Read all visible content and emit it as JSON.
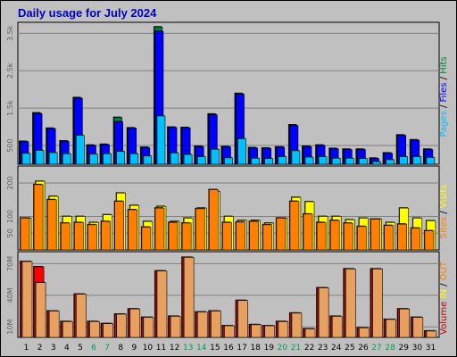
{
  "chart_data": {
    "type": "bar",
    "title": "Daily usage for July 2024",
    "colors": {
      "background": "#c0c0c0",
      "panel": "#c0c0c0",
      "hits": "#008040",
      "files": "#0000ff",
      "pages": "#00c0ff",
      "visits": "#ffff00",
      "sites": "#ff8000",
      "kbytes_in": "#ff0000",
      "kbytes_out": "#e8a060",
      "title": "#0000c0",
      "weekend_day": "#00a050"
    },
    "days": [
      "1",
      "2",
      "3",
      "4",
      "5",
      "6",
      "7",
      "8",
      "9",
      "10",
      "11",
      "12",
      "13",
      "14",
      "15",
      "16",
      "17",
      "18",
      "19",
      "20",
      "21",
      "22",
      "23",
      "24",
      "25",
      "26",
      "27",
      "28",
      "29",
      "30",
      "31"
    ],
    "weekend_days": [
      "6",
      "7",
      "13",
      "14",
      "20",
      "21",
      "27",
      "28"
    ],
    "top_panel": {
      "ylabel_parts": [
        "Pages",
        " / ",
        "Files",
        " / ",
        "Hits"
      ],
      "ticks": [
        "3.5k",
        "2.5k",
        "1.5k",
        "500"
      ],
      "tick_values": [
        3500,
        2500,
        1500,
        500
      ],
      "ylim": [
        0,
        3700
      ],
      "series": [
        {
          "name": "Hits",
          "values": [
            610,
            1370,
            960,
            620,
            1780,
            510,
            530,
            1250,
            970,
            450,
            3670,
            990,
            980,
            480,
            1340,
            470,
            1890,
            440,
            430,
            460,
            1050,
            480,
            510,
            420,
            400,
            400,
            160,
            300,
            780,
            650,
            400
          ]
        },
        {
          "name": "Files",
          "values": [
            600,
            1350,
            950,
            610,
            1760,
            500,
            520,
            1130,
            960,
            440,
            3550,
            980,
            970,
            470,
            1320,
            460,
            1870,
            430,
            420,
            450,
            1030,
            470,
            500,
            410,
            390,
            390,
            150,
            290,
            770,
            640,
            390
          ]
        },
        {
          "name": "Pages",
          "values": [
            290,
            370,
            310,
            280,
            770,
            270,
            280,
            340,
            280,
            220,
            1290,
            300,
            260,
            200,
            400,
            170,
            680,
            160,
            150,
            200,
            360,
            190,
            200,
            160,
            160,
            150,
            70,
            120,
            200,
            200,
            180
          ]
        }
      ]
    },
    "middle_panel": {
      "ylabel_parts": [
        "Sites",
        " / ",
        "Visits"
      ],
      "ticks": [
        "200",
        "100",
        "50"
      ],
      "tick_values": [
        200,
        100,
        50
      ],
      "ylim": [
        0,
        240
      ],
      "series": [
        {
          "name": "Visits",
          "values": [
            95,
            205,
            160,
            100,
            100,
            82,
            105,
            170,
            133,
            85,
            130,
            85,
            95,
            125,
            175,
            100,
            88,
            88,
            80,
            95,
            157,
            144,
            100,
            100,
            90,
            95,
            92,
            82,
            125,
            95,
            87
          ]
        },
        {
          "name": "Sites",
          "values": [
            95,
            195,
            150,
            80,
            82,
            75,
            85,
            145,
            120,
            68,
            125,
            82,
            80,
            123,
            180,
            82,
            83,
            85,
            75,
            95,
            145,
            107,
            82,
            88,
            80,
            70,
            92,
            73,
            77,
            65,
            57
          ]
        }
      ]
    },
    "bottom_panel": {
      "ylabel_parts": [
        "Volume",
        "  ",
        "IN",
        " / ",
        "OUT"
      ],
      "ticks": [
        "70M",
        "40M",
        "10M"
      ],
      "tick_values": [
        70,
        40,
        10
      ],
      "ylim": [
        0,
        78
      ],
      "series": [
        {
          "name": "IN",
          "values": [
            72,
            67,
            25,
            15,
            41,
            15,
            13,
            22,
            27,
            19,
            63,
            20,
            76,
            24,
            25,
            11,
            35,
            12,
            11,
            15,
            23,
            8,
            47,
            20,
            65,
            9,
            65,
            17,
            27,
            19,
            6
          ]
        },
        {
          "name": "OUT",
          "values": [
            72,
            52,
            25,
            15,
            41,
            15,
            13,
            22,
            27,
            19,
            63,
            20,
            76,
            24,
            25,
            11,
            35,
            12,
            11,
            15,
            23,
            8,
            47,
            20,
            65,
            9,
            65,
            17,
            27,
            19,
            6
          ]
        }
      ]
    }
  }
}
